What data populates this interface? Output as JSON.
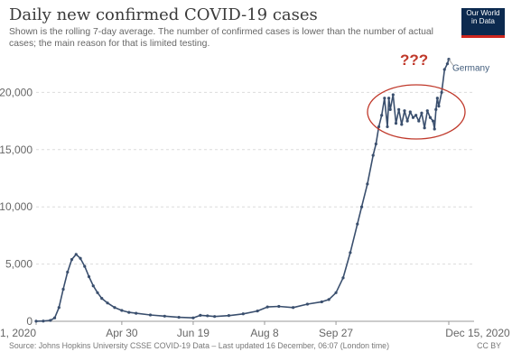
{
  "header": {
    "title": "Daily new confirmed COVID-19 cases",
    "subtitle": "Shown is the rolling 7-day average. The number of confirmed cases is lower than the number of actual cases; the main reason for that is limited testing."
  },
  "logo": {
    "line1": "Our World",
    "line2": "in Data"
  },
  "footer": {
    "source": "Source: Johns Hopkins University CSSE COVID-19 Data – Last updated 16 December, 06:07 (London time)",
    "license": "CC BY"
  },
  "colors": {
    "series": "#3a4f6e",
    "annotation": "#c0392b",
    "logo_bg": "#0c2a4f",
    "logo_bar": "#ce261e"
  },
  "chart_data": {
    "type": "line",
    "title": "Daily new confirmed COVID-19 cases",
    "xlabel": "",
    "ylabel": "",
    "xlim": [
      0,
      289
    ],
    "ylim": [
      0,
      23500
    ],
    "y_ticks": [
      0,
      5000,
      10000,
      15000,
      20000
    ],
    "y_tick_labels": [
      "0",
      "5,000",
      "10,000",
      "15,000",
      "20,000"
    ],
    "x_tick_labels": [
      "Mar 1, 2020",
      "Apr 30",
      "Jun 19",
      "Aug 8",
      "Sep 27",
      "Dec 15, 2020"
    ],
    "x_tick_days": [
      0,
      60,
      110,
      160,
      210,
      289
    ],
    "grid": "horizontal dashed",
    "series": [
      {
        "name": "Germany",
        "x": [
          0,
          5,
          10,
          13,
          16,
          19,
          22,
          25,
          28,
          31,
          34,
          37,
          40,
          43,
          46,
          50,
          55,
          60,
          65,
          70,
          80,
          90,
          100,
          110,
          115,
          120,
          125,
          135,
          145,
          155,
          162,
          170,
          180,
          190,
          200,
          205,
          210,
          215,
          220,
          225,
          228,
          232,
          236,
          238,
          240,
          242,
          244,
          246,
          247,
          248,
          250,
          252,
          254,
          256,
          258,
          260,
          262,
          264,
          266,
          268,
          270,
          272,
          274,
          276,
          278,
          279,
          280,
          281,
          282,
          284,
          286,
          288,
          289
        ],
        "y": [
          10,
          20,
          80,
          300,
          1200,
          2800,
          4300,
          5400,
          5850,
          5500,
          4800,
          3900,
          3100,
          2500,
          2000,
          1600,
          1200,
          950,
          780,
          700,
          550,
          450,
          350,
          300,
          520,
          480,
          420,
          500,
          650,
          900,
          1250,
          1300,
          1200,
          1500,
          1700,
          1900,
          2500,
          3800,
          6000,
          8500,
          10000,
          12000,
          14500,
          15500,
          17000,
          18000,
          19500,
          17000,
          19500,
          18500,
          19800,
          17300,
          18500,
          17200,
          18400,
          17500,
          18300,
          17800,
          18000,
          17500,
          18200,
          16900,
          18400,
          17800,
          17500,
          16800,
          18500,
          19500,
          18800,
          20000,
          22000,
          22500,
          22900
        ]
      }
    ],
    "annotation": {
      "text": "???",
      "target": "Nov–Dec plateau (ellipse)"
    }
  }
}
